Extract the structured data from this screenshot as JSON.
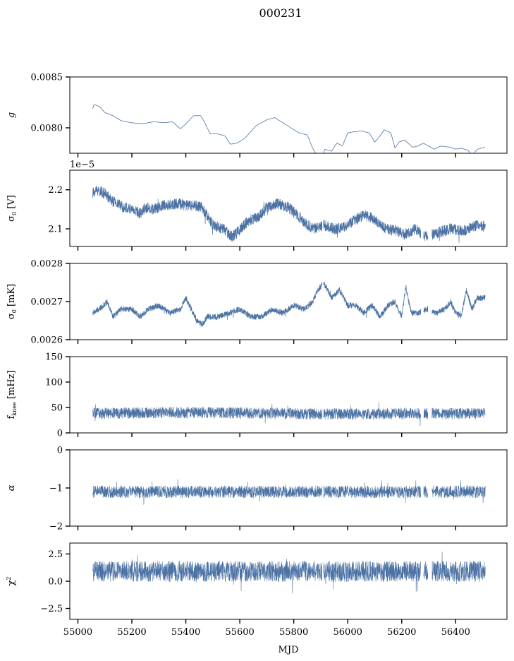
{
  "figure": {
    "title": "000231",
    "xlabel": "MJD",
    "x_ticks": [
      "55000",
      "55200",
      "55400",
      "55600",
      "55800",
      "56000",
      "56200",
      "56400"
    ]
  },
  "chart_data": [
    {
      "type": "line",
      "ylabel": "g",
      "xlim": [
        54970,
        56590
      ],
      "ylim": [
        0.00775,
        0.0085
      ],
      "yticks": [
        {
          "v": 0.008,
          "label": "0.0080"
        },
        {
          "v": 0.0085,
          "label": "0.0085"
        }
      ],
      "x_ticks_shown": false,
      "offset_label": "",
      "color": "#4c72a4",
      "noise": 1.2e-06,
      "line_width": 0.8,
      "trend": [
        [
          55055,
          0.00819
        ],
        [
          55060,
          0.00823
        ],
        [
          55080,
          0.00821
        ],
        [
          55100,
          0.00815
        ],
        [
          55130,
          0.00812
        ],
        [
          55160,
          0.00807
        ],
        [
          55200,
          0.00805
        ],
        [
          55240,
          0.00804
        ],
        [
          55280,
          0.00806
        ],
        [
          55320,
          0.00805
        ],
        [
          55350,
          0.00806
        ],
        [
          55380,
          0.00799
        ],
        [
          55400,
          0.00804
        ],
        [
          55430,
          0.00812
        ],
        [
          55455,
          0.00812
        ],
        [
          55470,
          0.00805
        ],
        [
          55490,
          0.00794
        ],
        [
          55520,
          0.00794
        ],
        [
          55545,
          0.00792
        ],
        [
          55565,
          0.00784
        ],
        [
          55590,
          0.00785
        ],
        [
          55620,
          0.0079
        ],
        [
          55660,
          0.00802
        ],
        [
          55700,
          0.00808
        ],
        [
          55730,
          0.0081
        ],
        [
          55760,
          0.00805
        ],
        [
          55790,
          0.008
        ],
        [
          55820,
          0.00795
        ],
        [
          55850,
          0.00793
        ],
        [
          55870,
          0.0078
        ],
        [
          55890,
          0.00771
        ],
        [
          55905,
          0.0077
        ],
        [
          55915,
          0.00779
        ],
        [
          55940,
          0.00777
        ],
        [
          55960,
          0.00785
        ],
        [
          55980,
          0.00782
        ],
        [
          56000,
          0.00795
        ],
        [
          56020,
          0.00796
        ],
        [
          56050,
          0.00797
        ],
        [
          56080,
          0.00795
        ],
        [
          56100,
          0.00786
        ],
        [
          56120,
          0.00792
        ],
        [
          56135,
          0.00798
        ],
        [
          56160,
          0.00795
        ],
        [
          56175,
          0.0078
        ],
        [
          56190,
          0.00786
        ],
        [
          56210,
          0.00788
        ],
        [
          56240,
          0.00781
        ],
        [
          56260,
          0.00782
        ],
        [
          56280,
          0.00785
        ],
        [
          56300,
          0.00782
        ],
        [
          56320,
          0.00779
        ],
        [
          56345,
          0.00782
        ],
        [
          56380,
          0.00781
        ],
        [
          56400,
          0.00779
        ],
        [
          56420,
          0.0078
        ],
        [
          56445,
          0.00778
        ],
        [
          56460,
          0.00773
        ],
        [
          56480,
          0.00779
        ],
        [
          56510,
          0.00781
        ]
      ]
    },
    {
      "type": "line",
      "ylabel": "σ0 [V]",
      "xlim": [
        54970,
        56590
      ],
      "ylim": [
        2.055e-05,
        2.25e-05
      ],
      "yticks": [
        {
          "v": 2.1e-05,
          "label": "2.1"
        },
        {
          "v": 2.2e-05,
          "label": "2.2"
        }
      ],
      "x_ticks_shown": false,
      "offset_label": "1e−5",
      "color": "#4c72a4",
      "noise": 1.4e-07,
      "line_width": 0.7,
      "gaps": [
        [
          55905,
          55910
        ],
        [
          56271,
          56281
        ],
        [
          56297,
          56312
        ]
      ],
      "trend": [
        [
          55055,
          2.19e-05
        ],
        [
          55070,
          2.2e-05
        ],
        [
          55100,
          2.19e-05
        ],
        [
          55130,
          2.17e-05
        ],
        [
          55170,
          2.155e-05
        ],
        [
          55200,
          2.15e-05
        ],
        [
          55230,
          2.14e-05
        ],
        [
          55250,
          2.155e-05
        ],
        [
          55280,
          2.15e-05
        ],
        [
          55320,
          2.16e-05
        ],
        [
          55370,
          2.165e-05
        ],
        [
          55400,
          2.16e-05
        ],
        [
          55430,
          2.16e-05
        ],
        [
          55460,
          2.155e-05
        ],
        [
          55500,
          2.11e-05
        ],
        [
          55540,
          2.1e-05
        ],
        [
          55570,
          2.08e-05
        ],
        [
          55590,
          2.09e-05
        ],
        [
          55630,
          2.12e-05
        ],
        [
          55670,
          2.13e-05
        ],
        [
          55700,
          2.155e-05
        ],
        [
          55740,
          2.165e-05
        ],
        [
          55780,
          2.155e-05
        ],
        [
          55820,
          2.13e-05
        ],
        [
          55850,
          2.11e-05
        ],
        [
          55880,
          2.1e-05
        ],
        [
          55910,
          2.11e-05
        ],
        [
          55950,
          2.1e-05
        ],
        [
          55990,
          2.105e-05
        ],
        [
          56020,
          2.12e-05
        ],
        [
          56060,
          2.135e-05
        ],
        [
          56100,
          2.125e-05
        ],
        [
          56140,
          2.1e-05
        ],
        [
          56180,
          2.095e-05
        ],
        [
          56210,
          2.085e-05
        ],
        [
          56250,
          2.1e-05
        ],
        [
          56290,
          2.08e-05
        ],
        [
          56330,
          2.09e-05
        ],
        [
          56380,
          2.1e-05
        ],
        [
          56430,
          2.095e-05
        ],
        [
          56480,
          2.11e-05
        ],
        [
          56510,
          2.105e-05
        ]
      ]
    },
    {
      "type": "line",
      "ylabel": "σ0 [mK]",
      "xlim": [
        54970,
        56590
      ],
      "ylim": [
        0.0026,
        0.0028
      ],
      "yticks": [
        {
          "v": 0.0026,
          "label": "0.0026"
        },
        {
          "v": 0.0027,
          "label": "0.0027"
        },
        {
          "v": 0.0028,
          "label": "0.0028"
        }
      ],
      "x_ticks_shown": false,
      "offset_label": "",
      "color": "#4c72a4",
      "noise": 7.5e-06,
      "line_width": 0.7,
      "gaps": [
        [
          55905,
          55910
        ],
        [
          56271,
          56281
        ],
        [
          56297,
          56312
        ]
      ],
      "trend": [
        [
          55055,
          0.00267
        ],
        [
          55080,
          0.00268
        ],
        [
          55110,
          0.0027
        ],
        [
          55130,
          0.00266
        ],
        [
          55160,
          0.00268
        ],
        [
          55200,
          0.00268
        ],
        [
          55230,
          0.00266
        ],
        [
          55260,
          0.00268
        ],
        [
          55300,
          0.00269
        ],
        [
          55340,
          0.00267
        ],
        [
          55380,
          0.00268
        ],
        [
          55400,
          0.00271
        ],
        [
          55420,
          0.00268
        ],
        [
          55440,
          0.00265
        ],
        [
          55460,
          0.00264
        ],
        [
          55480,
          0.00266
        ],
        [
          55520,
          0.00266
        ],
        [
          55560,
          0.00267
        ],
        [
          55600,
          0.00268
        ],
        [
          55640,
          0.00266
        ],
        [
          55680,
          0.00266
        ],
        [
          55720,
          0.00268
        ],
        [
          55760,
          0.00267
        ],
        [
          55800,
          0.00269
        ],
        [
          55840,
          0.00268
        ],
        [
          55870,
          0.0027
        ],
        [
          55890,
          0.00273
        ],
        [
          55910,
          0.00275
        ],
        [
          55940,
          0.00271
        ],
        [
          55970,
          0.00273
        ],
        [
          56000,
          0.00269
        ],
        [
          56030,
          0.00269
        ],
        [
          56060,
          0.00267
        ],
        [
          56090,
          0.00269
        ],
        [
          56120,
          0.00266
        ],
        [
          56150,
          0.00269
        ],
        [
          56175,
          0.0027
        ],
        [
          56200,
          0.00266
        ],
        [
          56215,
          0.00274
        ],
        [
          56235,
          0.00267
        ],
        [
          56260,
          0.00267
        ],
        [
          56290,
          0.00268
        ],
        [
          56330,
          0.00267
        ],
        [
          56360,
          0.00268
        ],
        [
          56380,
          0.0027
        ],
        [
          56400,
          0.00267
        ],
        [
          56420,
          0.00266
        ],
        [
          56440,
          0.00273
        ],
        [
          56460,
          0.00268
        ],
        [
          56480,
          0.00271
        ],
        [
          56510,
          0.00271
        ]
      ]
    },
    {
      "type": "line",
      "ylabel": "fknee [mHz]",
      "xlim": [
        54970,
        56590
      ],
      "ylim": [
        0,
        150
      ],
      "yticks": [
        {
          "v": 0,
          "label": "0"
        },
        {
          "v": 50,
          "label": "50"
        },
        {
          "v": 100,
          "label": "100"
        },
        {
          "v": 150,
          "label": "150"
        }
      ],
      "x_ticks_shown": false,
      "offset_label": "",
      "color": "#4c72a4",
      "noise": 11,
      "line_width": 0.6,
      "gaps": [
        [
          55905,
          55910
        ],
        [
          56271,
          56281
        ],
        [
          56297,
          56312
        ]
      ],
      "trend": [
        [
          55055,
          38
        ],
        [
          55300,
          40
        ],
        [
          55500,
          40
        ],
        [
          55800,
          38
        ],
        [
          56000,
          37
        ],
        [
          56200,
          38
        ],
        [
          56510,
          38
        ]
      ]
    },
    {
      "type": "line",
      "ylabel": "α",
      "xlim": [
        54970,
        56590
      ],
      "ylim": [
        -2,
        0
      ],
      "yticks": [
        {
          "v": -2,
          "label": "−2"
        },
        {
          "v": -1,
          "label": "−1"
        },
        {
          "v": 0,
          "label": "0"
        }
      ],
      "x_ticks_shown": false,
      "offset_label": "",
      "color": "#4c72a4",
      "noise": 0.16,
      "line_width": 0.6,
      "gaps": [
        [
          55905,
          55910
        ],
        [
          56271,
          56281
        ],
        [
          56297,
          56312
        ]
      ],
      "trend": [
        [
          55055,
          -1.1
        ],
        [
          55500,
          -1.1
        ],
        [
          56000,
          -1.1
        ],
        [
          56510,
          -1.1
        ]
      ]
    },
    {
      "type": "line",
      "ylabel": "χ2",
      "xlim": [
        54970,
        56590
      ],
      "ylim": [
        -3.5,
        3.5
      ],
      "yticks": [
        {
          "v": -2.5,
          "label": "−2.5"
        },
        {
          "v": 0,
          "label": "0.0"
        },
        {
          "v": 2.5,
          "label": "2.5"
        }
      ],
      "x_ticks_shown": true,
      "offset_label": "",
      "color": "#4c72a4",
      "noise": 0.95,
      "line_width": 0.6,
      "gaps": [
        [
          55905,
          55910
        ],
        [
          56271,
          56281
        ],
        [
          56297,
          56312
        ]
      ],
      "trend": [
        [
          55055,
          0.9
        ],
        [
          55500,
          0.9
        ],
        [
          56000,
          0.9
        ],
        [
          56510,
          0.9
        ]
      ]
    }
  ]
}
